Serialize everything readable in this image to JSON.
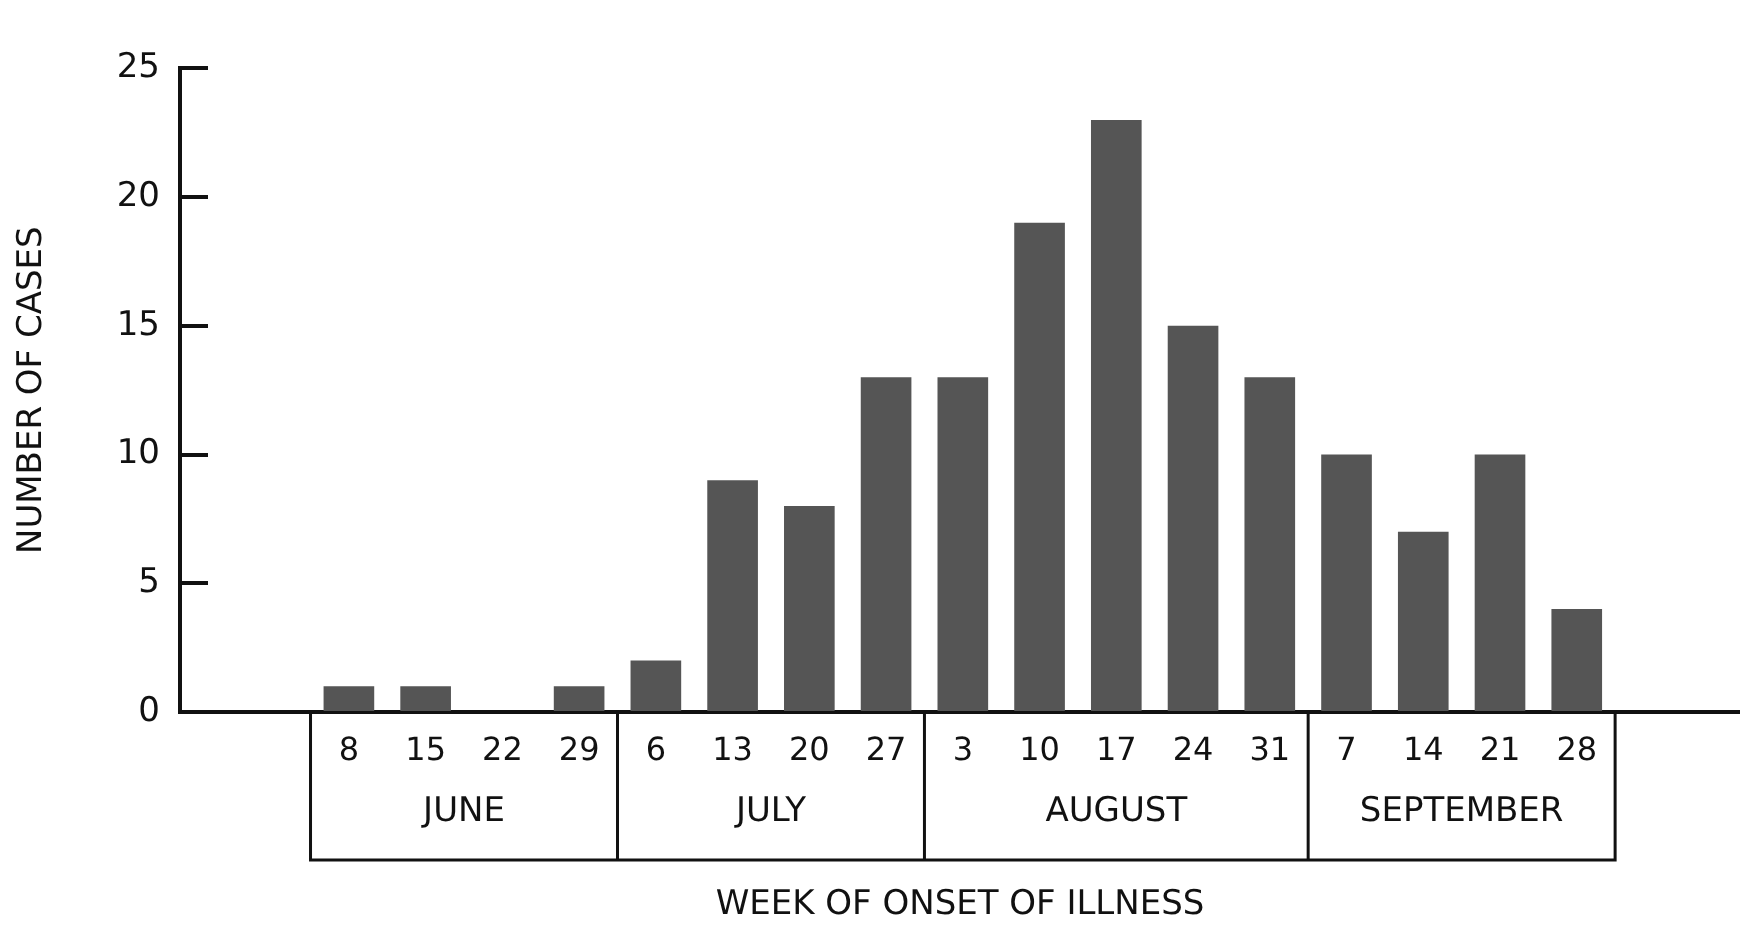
{
  "chart_data": {
    "type": "bar",
    "xlabel": "WEEK OF ONSET OF ILLNESS",
    "ylabel": "NUMBER OF CASES",
    "categories": [
      "8",
      "15",
      "22",
      "29",
      "6",
      "13",
      "20",
      "27",
      "3",
      "10",
      "17",
      "24",
      "31",
      "7",
      "14",
      "21",
      "28"
    ],
    "values": [
      1,
      1,
      0,
      1,
      2,
      9,
      8,
      13,
      13,
      19,
      23,
      15,
      13,
      10,
      7,
      10,
      4
    ],
    "color": "#555555",
    "ylim": [
      0,
      25
    ],
    "yticks": [
      0,
      5,
      10,
      15,
      20,
      25
    ],
    "annotations": [
      "JUNE",
      "JULY",
      "AUGUST",
      "SEPTEMBER"
    ],
    "grid": false,
    "legend": false
  }
}
